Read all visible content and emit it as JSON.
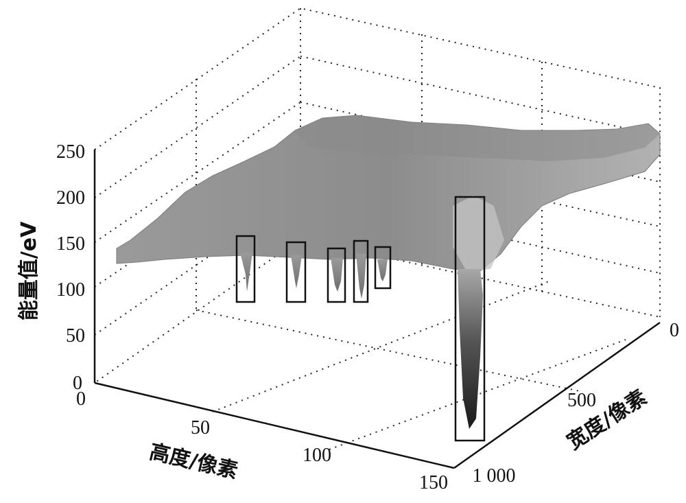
{
  "chart_data": {
    "type": "surface3d",
    "zlabel": "能量值/eV",
    "xlabel": "高度/像素",
    "ylabel": "宽度/像素",
    "z_ticks": [
      "0",
      "50",
      "100",
      "150",
      "200",
      "250"
    ],
    "x_ticks": [
      "0",
      "50",
      "100",
      "150"
    ],
    "y_ticks": [
      "0",
      "500",
      "1 000"
    ],
    "zlim": [
      0,
      250
    ],
    "xlim": [
      0,
      150
    ],
    "ylim": [
      0,
      1000
    ],
    "surface_base_level": 145,
    "surface_level_far_end": 205,
    "highlighted_regions": [
      {
        "x_approx": 45,
        "z_min": 85,
        "z_max": 158
      },
      {
        "x_approx": 65,
        "z_min": 85,
        "z_max": 150
      },
      {
        "x_approx": 78,
        "z_min": 85,
        "z_max": 143
      },
      {
        "x_approx": 88,
        "z_min": 85,
        "z_max": 152
      },
      {
        "x_approx": 95,
        "z_min": 100,
        "z_max": 146
      },
      {
        "x_approx": 150,
        "z_min": 0,
        "z_max": 200
      }
    ],
    "grid": true,
    "colormap": "gray"
  }
}
